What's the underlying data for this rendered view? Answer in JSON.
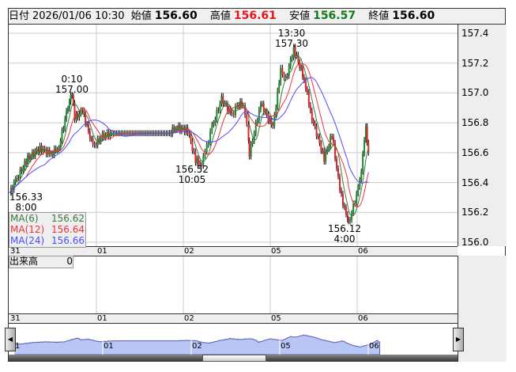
{
  "header": {
    "date_label": "日付",
    "datetime": "2026/01/06 10:30",
    "open_label": "始値",
    "open": "156.60",
    "high_label": "高値",
    "high": "156.61",
    "low_label": "安値",
    "low": "156.57",
    "close_label": "終値",
    "close": "156.60",
    "high_color": "#e8141e",
    "low_color": "#137a1c"
  },
  "ma": [
    {
      "label": "MA(6)",
      "value": "156.62",
      "color": "#3a7a3a"
    },
    {
      "label": "MA(12)",
      "value": "156.64",
      "color": "#f0323c"
    },
    {
      "label": "MA(24)",
      "value": "156.66",
      "color": "#4b4bff"
    }
  ],
  "volume": {
    "label": "出来高",
    "value": "0"
  },
  "day_labels": [
    "31",
    "01",
    "02",
    "05",
    "06"
  ],
  "annotations": [
    {
      "time": "0:10",
      "price": "157.00"
    },
    {
      "time": "13:30",
      "price": "157.30"
    },
    {
      "price": "156.52",
      "time": "10:05"
    },
    {
      "price": "156.33",
      "time": "8:00"
    },
    {
      "price": "156.12",
      "time": "4:00"
    }
  ],
  "chart_data": {
    "type": "line",
    "yticks": [
      "157.4",
      "157.2",
      "157.0",
      "156.8",
      "156.6",
      "156.4",
      "156.2",
      "156.0"
    ],
    "ylim": [
      156.0,
      157.4
    ],
    "x_unit": "day index (0 = 31, 1 = 01, 2 = 02, 3 = 05, 4 = 06)",
    "points": [
      [
        0,
        156.33
      ],
      [
        0.07,
        156.41
      ],
      [
        0.21,
        156.56
      ],
      [
        0.35,
        156.63
      ],
      [
        0.48,
        156.59
      ],
      [
        0.57,
        156.64
      ],
      [
        0.69,
        156.96
      ],
      [
        0.72,
        157.0
      ],
      [
        0.75,
        156.83
      ],
      [
        0.84,
        156.88
      ],
      [
        0.96,
        156.64
      ],
      [
        1.07,
        156.71
      ],
      [
        1.16,
        156.73
      ],
      [
        1.84,
        156.73
      ],
      [
        1.91,
        156.77
      ],
      [
        2.05,
        156.75
      ],
      [
        2.14,
        156.55
      ],
      [
        2.21,
        156.52
      ],
      [
        2.25,
        156.6
      ],
      [
        2.33,
        156.77
      ],
      [
        2.44,
        156.96
      ],
      [
        2.56,
        156.85
      ],
      [
        2.62,
        156.92
      ],
      [
        2.69,
        156.93
      ],
      [
        2.75,
        156.7
      ],
      [
        2.76,
        156.59
      ],
      [
        2.89,
        156.93
      ],
      [
        3.03,
        156.77
      ],
      [
        3.12,
        157.15
      ],
      [
        3.18,
        157.09
      ],
      [
        3.27,
        157.3
      ],
      [
        3.39,
        157.09
      ],
      [
        3.48,
        156.83
      ],
      [
        3.62,
        156.56
      ],
      [
        3.71,
        156.72
      ],
      [
        3.8,
        156.35
      ],
      [
        3.89,
        156.14
      ],
      [
        3.9,
        156.12
      ],
      [
        4.03,
        156.4
      ],
      [
        4.1,
        156.77
      ],
      [
        4.13,
        156.6
      ]
    ]
  }
}
